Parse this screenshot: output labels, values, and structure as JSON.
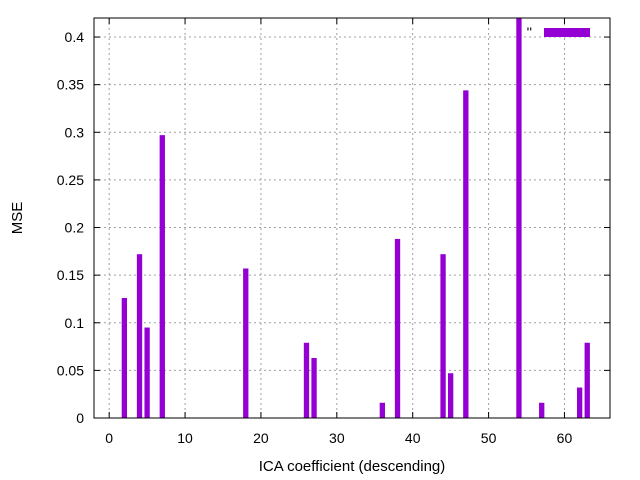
{
  "chart_data": {
    "type": "bar",
    "title": "",
    "xlabel": "ICA coefficient (descending)",
    "ylabel": "MSE",
    "xlim": [
      -2,
      66
    ],
    "ylim": [
      0,
      0.42
    ],
    "xticks": [
      0,
      10,
      20,
      30,
      40,
      50,
      60
    ],
    "yticks": [
      0,
      0.05,
      0.1,
      0.15,
      0.2,
      0.25,
      0.3,
      0.35,
      0.4
    ],
    "grid": true,
    "legend_position": "top-right",
    "series": [
      {
        "name": "''",
        "color": "#9400d3",
        "points": [
          {
            "x": 2,
            "y": 0.126
          },
          {
            "x": 4,
            "y": 0.172
          },
          {
            "x": 5,
            "y": 0.095
          },
          {
            "x": 7,
            "y": 0.297
          },
          {
            "x": 18,
            "y": 0.157
          },
          {
            "x": 26,
            "y": 0.079
          },
          {
            "x": 27,
            "y": 0.063
          },
          {
            "x": 36,
            "y": 0.016
          },
          {
            "x": 38,
            "y": 0.188
          },
          {
            "x": 44,
            "y": 0.172
          },
          {
            "x": 45,
            "y": 0.047
          },
          {
            "x": 47,
            "y": 0.344
          },
          {
            "x": 54,
            "y": 0.42
          },
          {
            "x": 57,
            "y": 0.016
          },
          {
            "x": 62,
            "y": 0.032
          },
          {
            "x": 63,
            "y": 0.079
          }
        ]
      }
    ]
  }
}
